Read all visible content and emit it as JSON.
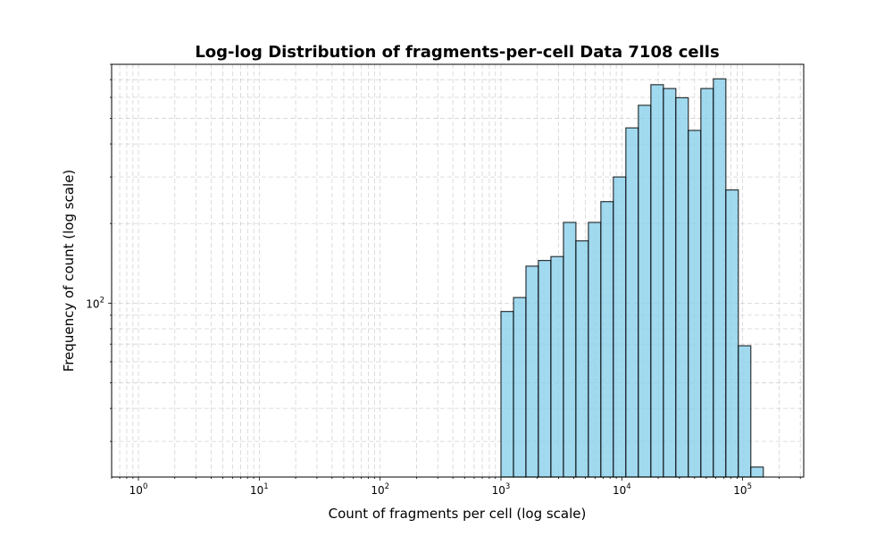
{
  "chart_data": {
    "type": "bar",
    "title": "Log-log Distribution of fragments-per-cell Data 7108 cells",
    "xlabel": "Count of fragments per cell (log scale)",
    "ylabel": "Frequency of count (log scale)",
    "xscale": "log",
    "yscale": "log",
    "xlim": [
      0.6,
      320000
    ],
    "ylim": [
      22,
      800
    ],
    "grid": true,
    "bar_color": "#87CEEB",
    "edge_color": "#000000",
    "x_ticks": [
      {
        "value": 1,
        "base": "10",
        "exp": "0"
      },
      {
        "value": 10,
        "base": "10",
        "exp": "1"
      },
      {
        "value": 100,
        "base": "10",
        "exp": "2"
      },
      {
        "value": 1000,
        "base": "10",
        "exp": "3"
      },
      {
        "value": 10000,
        "base": "10",
        "exp": "4"
      },
      {
        "value": 100000,
        "base": "10",
        "exp": "5"
      }
    ],
    "y_ticks": [
      {
        "value": 100,
        "base": "10",
        "exp": "2"
      }
    ],
    "bins": [
      {
        "x0": 1000,
        "x1": 1270,
        "count": 93
      },
      {
        "x0": 1270,
        "x1": 1610,
        "count": 105
      },
      {
        "x0": 1610,
        "x1": 2040,
        "count": 138
      },
      {
        "x0": 2040,
        "x1": 2590,
        "count": 145
      },
      {
        "x0": 2590,
        "x1": 3290,
        "count": 150
      },
      {
        "x0": 3290,
        "x1": 4170,
        "count": 202
      },
      {
        "x0": 4170,
        "x1": 5290,
        "count": 172
      },
      {
        "x0": 5290,
        "x1": 6710,
        "count": 202
      },
      {
        "x0": 6710,
        "x1": 8510,
        "count": 242
      },
      {
        "x0": 8510,
        "x1": 10800,
        "count": 300
      },
      {
        "x0": 10800,
        "x1": 13700,
        "count": 460
      },
      {
        "x0": 13700,
        "x1": 17400,
        "count": 560
      },
      {
        "x0": 17400,
        "x1": 22100,
        "count": 670
      },
      {
        "x0": 22100,
        "x1": 28000,
        "count": 648
      },
      {
        "x0": 28000,
        "x1": 35500,
        "count": 598
      },
      {
        "x0": 35500,
        "x1": 45100,
        "count": 450
      },
      {
        "x0": 45100,
        "x1": 57200,
        "count": 648
      },
      {
        "x0": 57200,
        "x1": 72600,
        "count": 705
      },
      {
        "x0": 72600,
        "x1": 92100,
        "count": 268
      },
      {
        "x0": 92100,
        "x1": 116800,
        "count": 69
      },
      {
        "x0": 116800,
        "x1": 148200,
        "count": 24
      }
    ]
  }
}
